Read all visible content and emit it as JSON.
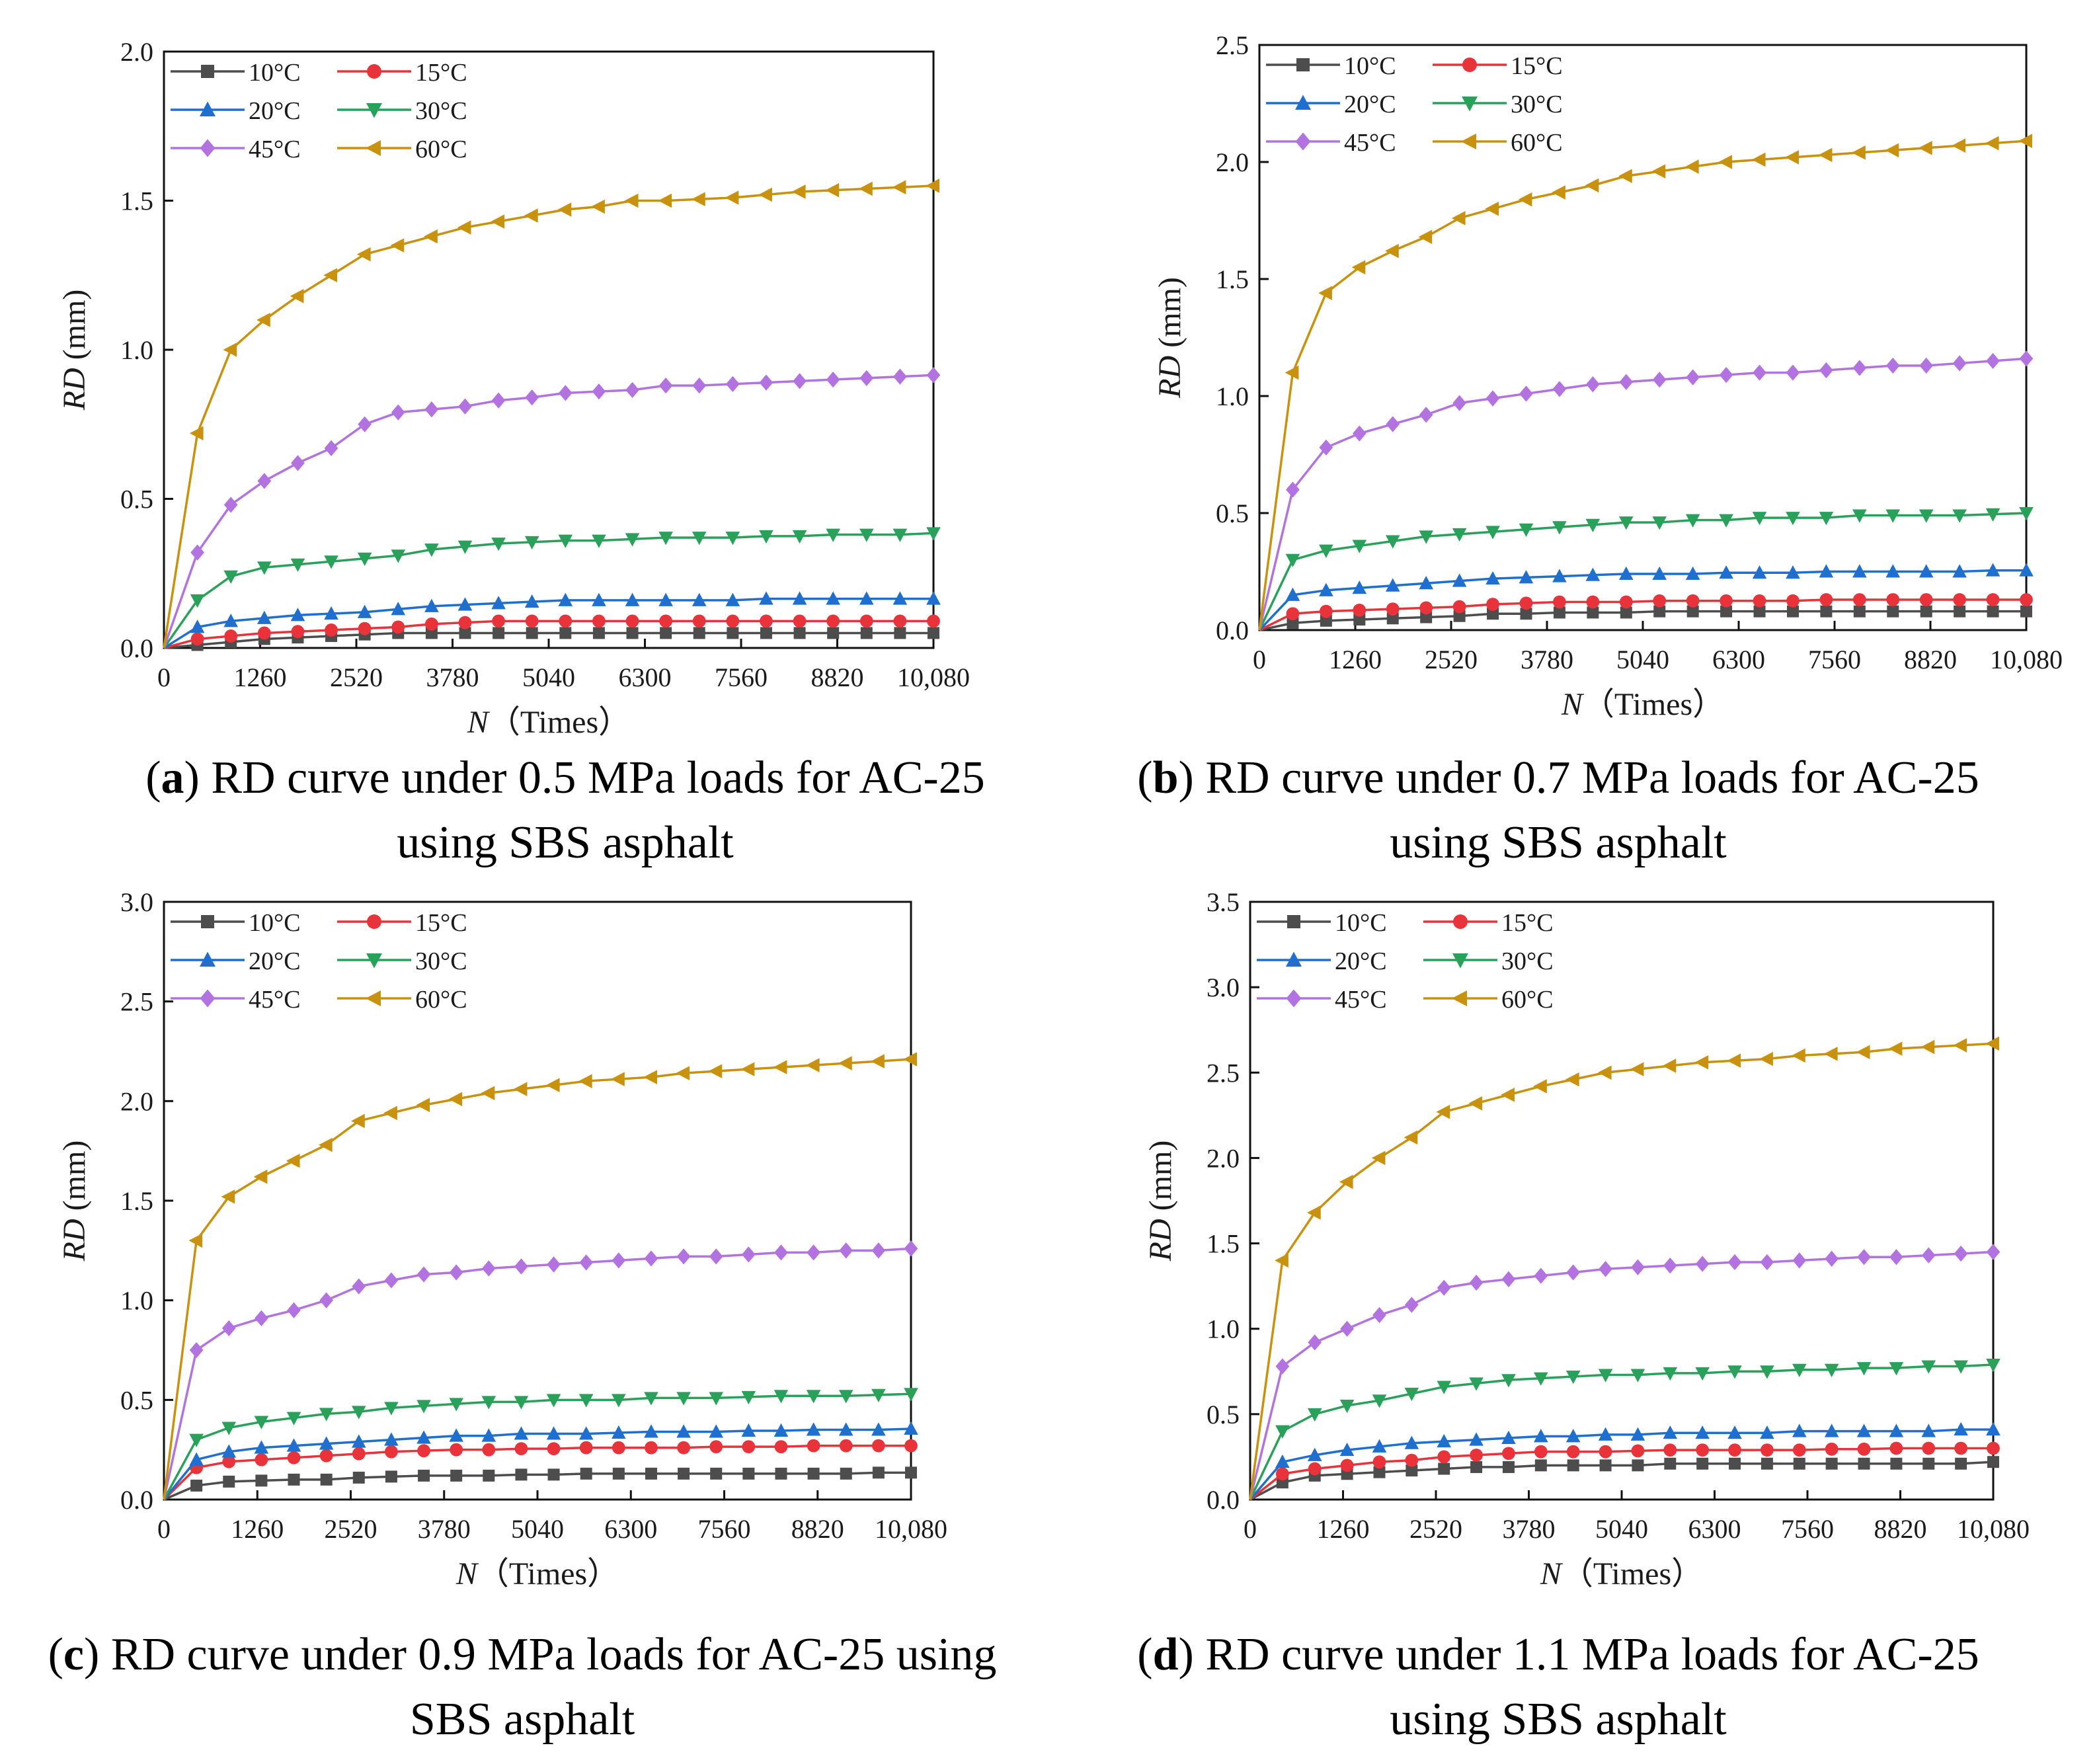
{
  "chart_data": [
    {
      "type": "line",
      "panel_letter": "a",
      "caption": "RD curve under 0.5 MPa loads for AC-25 using SBS asphalt",
      "xlabel_var": "N",
      "xlabel_unit": "（Times）",
      "ylabel_var": "RD",
      "ylabel_unit": " (mm)",
      "xlim": [
        0,
        10080
      ],
      "ylim": [
        0,
        2.0
      ],
      "xticks": [
        0,
        1260,
        2520,
        3780,
        5040,
        6300,
        7560,
        8820,
        10080
      ],
      "xtick_labels": [
        "0",
        "1260",
        "2520",
        "3780",
        "5040",
        "6300",
        "7560",
        "8820",
        "10,080"
      ],
      "yticks": [
        0,
        0.5,
        1.0,
        1.5,
        2.0
      ],
      "ytick_labels": [
        "0.0",
        "0.5",
        "1.0",
        "1.5",
        "2.0"
      ],
      "legend_position": "top-left",
      "series": [
        {
          "name": "10°C",
          "values": [
            0,
            0.01,
            0.02,
            0.03,
            0.035,
            0.04,
            0.045,
            0.05,
            0.05,
            0.05,
            0.05,
            0.05,
            0.05,
            0.05,
            0.05,
            0.05,
            0.05,
            0.05,
            0.05,
            0.05,
            0.05,
            0.05,
            0.05,
            0.05
          ]
        },
        {
          "name": "15°C",
          "values": [
            0,
            0.03,
            0.04,
            0.05,
            0.055,
            0.06,
            0.065,
            0.07,
            0.08,
            0.085,
            0.09,
            0.09,
            0.09,
            0.09,
            0.09,
            0.09,
            0.09,
            0.09,
            0.09,
            0.09,
            0.09,
            0.09,
            0.09,
            0.09
          ]
        },
        {
          "name": "20°C",
          "values": [
            0,
            0.07,
            0.09,
            0.1,
            0.11,
            0.115,
            0.12,
            0.13,
            0.14,
            0.145,
            0.15,
            0.155,
            0.16,
            0.16,
            0.16,
            0.16,
            0.16,
            0.16,
            0.165,
            0.165,
            0.165,
            0.165,
            0.165,
            0.165
          ]
        },
        {
          "name": "30°C",
          "values": [
            0,
            0.16,
            0.24,
            0.27,
            0.28,
            0.29,
            0.3,
            0.31,
            0.33,
            0.34,
            0.35,
            0.355,
            0.36,
            0.36,
            0.365,
            0.37,
            0.37,
            0.37,
            0.375,
            0.375,
            0.38,
            0.38,
            0.38,
            0.385
          ]
        },
        {
          "name": "45°C",
          "values": [
            0,
            0.32,
            0.48,
            0.56,
            0.62,
            0.67,
            0.75,
            0.79,
            0.8,
            0.81,
            0.83,
            0.84,
            0.855,
            0.86,
            0.865,
            0.88,
            0.88,
            0.885,
            0.89,
            0.895,
            0.9,
            0.905,
            0.91,
            0.915
          ]
        },
        {
          "name": "60°C",
          "values": [
            0,
            0.72,
            1.0,
            1.1,
            1.18,
            1.25,
            1.32,
            1.35,
            1.38,
            1.41,
            1.43,
            1.45,
            1.47,
            1.48,
            1.5,
            1.5,
            1.505,
            1.51,
            1.52,
            1.53,
            1.535,
            1.54,
            1.545,
            1.55
          ]
        }
      ]
    },
    {
      "type": "line",
      "panel_letter": "b",
      "caption": "RD curve under 0.7 MPa loads for AC-25 using SBS asphalt",
      "xlabel_var": "N",
      "xlabel_unit": "（Times）",
      "ylabel_var": "RD",
      "ylabel_unit": " (mm)",
      "xlim": [
        0,
        10080
      ],
      "ylim": [
        0,
        2.5
      ],
      "xticks": [
        0,
        1260,
        2520,
        3780,
        5040,
        6300,
        7560,
        8820,
        10080
      ],
      "xtick_labels": [
        "0",
        "1260",
        "2520",
        "3780",
        "5040",
        "6300",
        "7560",
        "8820",
        "10,080"
      ],
      "yticks": [
        0,
        0.5,
        1.0,
        1.5,
        2.0,
        2.5
      ],
      "ytick_labels": [
        "0.0",
        "0.5",
        "1.0",
        "1.5",
        "2.0",
        "2.5"
      ],
      "legend_position": "top-left",
      "series": [
        {
          "name": "10°C",
          "values": [
            0,
            0.03,
            0.04,
            0.045,
            0.05,
            0.055,
            0.06,
            0.07,
            0.07,
            0.075,
            0.075,
            0.075,
            0.08,
            0.08,
            0.08,
            0.08,
            0.08,
            0.08,
            0.08,
            0.08,
            0.08,
            0.08,
            0.08,
            0.08
          ]
        },
        {
          "name": "15°C",
          "values": [
            0,
            0.07,
            0.08,
            0.085,
            0.09,
            0.095,
            0.1,
            0.11,
            0.115,
            0.12,
            0.12,
            0.12,
            0.125,
            0.125,
            0.125,
            0.125,
            0.125,
            0.13,
            0.13,
            0.13,
            0.13,
            0.13,
            0.13,
            0.13
          ]
        },
        {
          "name": "20°C",
          "values": [
            0,
            0.15,
            0.17,
            0.18,
            0.19,
            0.2,
            0.21,
            0.22,
            0.225,
            0.23,
            0.235,
            0.24,
            0.24,
            0.24,
            0.245,
            0.245,
            0.245,
            0.25,
            0.25,
            0.25,
            0.25,
            0.25,
            0.255,
            0.255
          ]
        },
        {
          "name": "30°C",
          "values": [
            0,
            0.3,
            0.34,
            0.36,
            0.38,
            0.4,
            0.41,
            0.42,
            0.43,
            0.44,
            0.45,
            0.46,
            0.46,
            0.47,
            0.47,
            0.48,
            0.48,
            0.48,
            0.49,
            0.49,
            0.49,
            0.49,
            0.495,
            0.5
          ]
        },
        {
          "name": "45°C",
          "values": [
            0,
            0.6,
            0.78,
            0.84,
            0.88,
            0.92,
            0.97,
            0.99,
            1.01,
            1.03,
            1.05,
            1.06,
            1.07,
            1.08,
            1.09,
            1.1,
            1.1,
            1.11,
            1.12,
            1.13,
            1.13,
            1.14,
            1.15,
            1.16
          ]
        },
        {
          "name": "60°C",
          "values": [
            0,
            1.1,
            1.44,
            1.55,
            1.62,
            1.68,
            1.76,
            1.8,
            1.84,
            1.87,
            1.9,
            1.94,
            1.96,
            1.98,
            2.0,
            2.01,
            2.02,
            2.03,
            2.04,
            2.05,
            2.06,
            2.07,
            2.08,
            2.09
          ]
        }
      ]
    },
    {
      "type": "line",
      "panel_letter": "c",
      "caption": "RD curve under 0.9 MPa loads for AC-25 using SBS asphalt",
      "xlabel_var": "N",
      "xlabel_unit": "（Times）",
      "ylabel_var": "RD",
      "ylabel_unit": " (mm)",
      "xlim": [
        0,
        10080
      ],
      "ylim": [
        0,
        3.0
      ],
      "xticks": [
        0,
        1260,
        2520,
        3780,
        5040,
        6300,
        7560,
        8820,
        10080
      ],
      "xtick_labels": [
        "0",
        "1260",
        "2520",
        "3780",
        "5040",
        "6300",
        "7560",
        "8820",
        "10,080"
      ],
      "yticks": [
        0,
        0.5,
        1.0,
        1.5,
        2.0,
        2.5,
        3.0
      ],
      "ytick_labels": [
        "0.0",
        "0.5",
        "1.0",
        "1.5",
        "2.0",
        "2.5",
        "3.0"
      ],
      "legend_position": "top-left",
      "series": [
        {
          "name": "10°C",
          "values": [
            0,
            0.07,
            0.09,
            0.095,
            0.1,
            0.1,
            0.11,
            0.115,
            0.12,
            0.12,
            0.12,
            0.125,
            0.125,
            0.13,
            0.13,
            0.13,
            0.13,
            0.13,
            0.13,
            0.13,
            0.13,
            0.13,
            0.135,
            0.135
          ]
        },
        {
          "name": "15°C",
          "values": [
            0,
            0.16,
            0.19,
            0.2,
            0.21,
            0.22,
            0.23,
            0.24,
            0.245,
            0.25,
            0.25,
            0.255,
            0.255,
            0.26,
            0.26,
            0.26,
            0.26,
            0.265,
            0.265,
            0.265,
            0.27,
            0.27,
            0.27,
            0.27
          ]
        },
        {
          "name": "20°C",
          "values": [
            0,
            0.2,
            0.24,
            0.26,
            0.27,
            0.28,
            0.29,
            0.3,
            0.31,
            0.32,
            0.32,
            0.33,
            0.33,
            0.33,
            0.335,
            0.34,
            0.34,
            0.34,
            0.345,
            0.345,
            0.35,
            0.35,
            0.35,
            0.355
          ]
        },
        {
          "name": "30°C",
          "values": [
            0,
            0.3,
            0.36,
            0.39,
            0.41,
            0.43,
            0.44,
            0.46,
            0.47,
            0.48,
            0.49,
            0.49,
            0.5,
            0.5,
            0.5,
            0.51,
            0.51,
            0.51,
            0.515,
            0.52,
            0.52,
            0.52,
            0.525,
            0.53
          ]
        },
        {
          "name": "45°C",
          "values": [
            0,
            0.75,
            0.86,
            0.91,
            0.95,
            1.0,
            1.07,
            1.1,
            1.13,
            1.14,
            1.16,
            1.17,
            1.18,
            1.19,
            1.2,
            1.21,
            1.22,
            1.22,
            1.23,
            1.24,
            1.24,
            1.25,
            1.25,
            1.26
          ]
        },
        {
          "name": "60°C",
          "values": [
            0,
            1.3,
            1.52,
            1.62,
            1.7,
            1.78,
            1.9,
            1.94,
            1.98,
            2.01,
            2.04,
            2.06,
            2.08,
            2.1,
            2.11,
            2.12,
            2.14,
            2.15,
            2.16,
            2.17,
            2.18,
            2.19,
            2.2,
            2.21
          ]
        }
      ]
    },
    {
      "type": "line",
      "panel_letter": "d",
      "caption": "RD curve under 1.1 MPa loads for AC-25 using SBS asphalt",
      "xlabel_var": "N",
      "xlabel_unit": "（Times）",
      "ylabel_var": "RD",
      "ylabel_unit": " (mm)",
      "xlim": [
        0,
        10080
      ],
      "ylim": [
        0,
        3.5
      ],
      "xticks": [
        0,
        1260,
        2520,
        3780,
        5040,
        6300,
        7560,
        8820,
        10080
      ],
      "xtick_labels": [
        "0",
        "1260",
        "2520",
        "3780",
        "5040",
        "6300",
        "7560",
        "8820",
        "10,080"
      ],
      "yticks": [
        0,
        0.5,
        1.0,
        1.5,
        2.0,
        2.5,
        3.0,
        3.5
      ],
      "ytick_labels": [
        "0.0",
        "0.5",
        "1.0",
        "1.5",
        "2.0",
        "2.5",
        "3.0",
        "3.5"
      ],
      "legend_position": "top-left",
      "series": [
        {
          "name": "10°C",
          "values": [
            0,
            0.1,
            0.14,
            0.15,
            0.16,
            0.17,
            0.18,
            0.19,
            0.19,
            0.2,
            0.2,
            0.2,
            0.2,
            0.21,
            0.21,
            0.21,
            0.21,
            0.21,
            0.21,
            0.21,
            0.21,
            0.21,
            0.21,
            0.22
          ]
        },
        {
          "name": "15°C",
          "values": [
            0,
            0.15,
            0.18,
            0.2,
            0.22,
            0.23,
            0.25,
            0.26,
            0.27,
            0.28,
            0.28,
            0.28,
            0.285,
            0.29,
            0.29,
            0.29,
            0.29,
            0.29,
            0.295,
            0.295,
            0.3,
            0.3,
            0.3,
            0.3
          ]
        },
        {
          "name": "20°C",
          "values": [
            0,
            0.22,
            0.26,
            0.29,
            0.31,
            0.33,
            0.34,
            0.35,
            0.36,
            0.37,
            0.37,
            0.38,
            0.38,
            0.39,
            0.39,
            0.39,
            0.39,
            0.4,
            0.4,
            0.4,
            0.4,
            0.4,
            0.41,
            0.41
          ]
        },
        {
          "name": "30°C",
          "values": [
            0,
            0.4,
            0.5,
            0.55,
            0.58,
            0.62,
            0.66,
            0.68,
            0.7,
            0.71,
            0.72,
            0.73,
            0.73,
            0.74,
            0.74,
            0.75,
            0.75,
            0.76,
            0.76,
            0.77,
            0.77,
            0.78,
            0.78,
            0.79
          ]
        },
        {
          "name": "45°C",
          "values": [
            0,
            0.78,
            0.92,
            1.0,
            1.08,
            1.14,
            1.24,
            1.27,
            1.29,
            1.31,
            1.33,
            1.35,
            1.36,
            1.37,
            1.38,
            1.39,
            1.39,
            1.4,
            1.41,
            1.42,
            1.42,
            1.43,
            1.44,
            1.45
          ]
        },
        {
          "name": "60°C",
          "values": [
            0,
            1.4,
            1.68,
            1.86,
            2.0,
            2.12,
            2.27,
            2.32,
            2.37,
            2.42,
            2.46,
            2.5,
            2.52,
            2.54,
            2.56,
            2.57,
            2.58,
            2.6,
            2.61,
            2.62,
            2.64,
            2.65,
            2.66,
            2.67
          ]
        }
      ]
    }
  ],
  "legend_colors": {
    "10°C": "#4d4d4d",
    "15°C": "#e8333a",
    "20°C": "#1f6fd1",
    "30°C": "#2aa15a",
    "45°C": "#b273e0",
    "60°C": "#c9920e"
  },
  "marker_shapes": {
    "10°C": "square",
    "15°C": "circle",
    "20°C": "triangle-up",
    "30°C": "triangle-down",
    "45°C": "diamond",
    "60°C": "left-triangle"
  }
}
